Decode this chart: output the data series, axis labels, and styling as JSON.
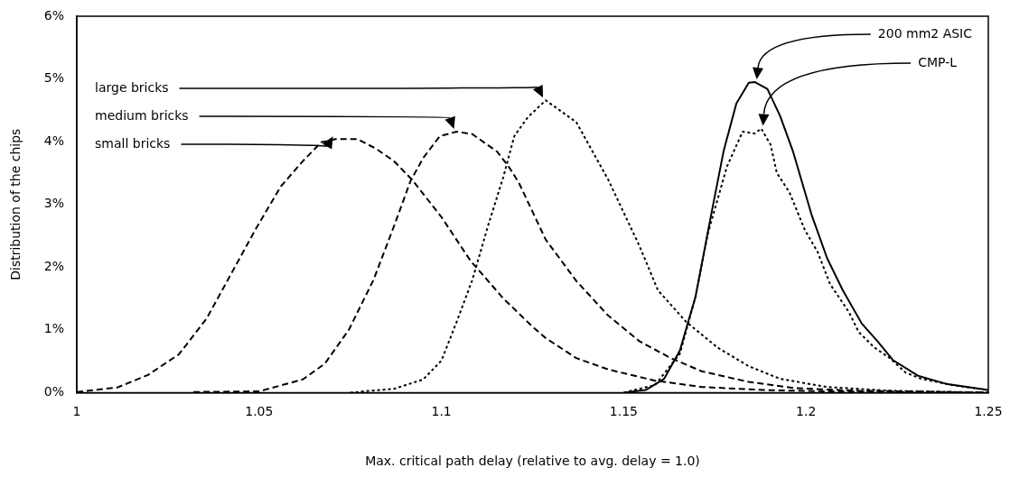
{
  "chart_data": {
    "type": "line",
    "xlabel": "Max. critical path delay (relative to avg. delay = 1.0)",
    "ylabel": "Distribution of the chips",
    "xlim": [
      1,
      1.25
    ],
    "xticks": [
      1,
      1.05,
      1.1,
      1.15,
      1.2,
      1.25
    ],
    "ylim": [
      0,
      6
    ],
    "yticks": [
      {
        "value": 0,
        "label": "0%"
      },
      {
        "value": 1,
        "label": "1%"
      },
      {
        "value": 2,
        "label": "2%"
      },
      {
        "value": 3,
        "label": "3%"
      },
      {
        "value": 4,
        "label": "4%"
      },
      {
        "value": 5,
        "label": "5%"
      },
      {
        "value": 6,
        "label": "6%"
      }
    ],
    "grid": false,
    "legend": false,
    "annotations": [
      "large bricks",
      "medium bricks",
      "small bricks",
      "200 mm2 ASIC",
      "CMP-L"
    ],
    "series": [
      {
        "color": "#000000",
        "line_style": "dotted",
        "x": [
          1.075,
          1.087,
          1.095,
          1.1,
          1.104,
          1.1085,
          1.113,
          1.117,
          1.12,
          1.1237,
          1.1286,
          1.137,
          1.1457,
          1.1543,
          1.1594,
          1.1671,
          1.1757,
          1.1843,
          1.1929,
          1.2057,
          1.2229,
          1.25
        ],
        "values": [
          0,
          0.06,
          0.21,
          0.51,
          1.1,
          1.8,
          2.7,
          3.44,
          4.09,
          4.39,
          4.66,
          4.31,
          3.4,
          2.34,
          1.63,
          1.13,
          0.72,
          0.42,
          0.22,
          0.09,
          0.03,
          0
        ]
      },
      {
        "color": "#000000",
        "line_style": "dashed",
        "x": [
          1.032,
          1.05,
          1.062,
          1.068,
          1.0746,
          1.0814,
          1.0873,
          1.0915,
          1.095,
          1.0996,
          1.1042,
          1.1085,
          1.1153,
          1.1186,
          1.1212,
          1.1286,
          1.137,
          1.1457,
          1.1543,
          1.1629,
          1.1714,
          1.1843,
          1.1972,
          1.2143,
          1.25
        ],
        "values": [
          0.01,
          0.02,
          0.21,
          0.46,
          1.0,
          1.8,
          2.7,
          3.37,
          3.74,
          4.09,
          4.16,
          4.12,
          3.84,
          3.59,
          3.35,
          2.44,
          1.78,
          1.23,
          0.82,
          0.55,
          0.34,
          0.17,
          0.07,
          0.03,
          0
        ]
      },
      {
        "color": "#000000",
        "line_style": "dashed",
        "x": [
          1,
          1.011,
          1.0195,
          1.028,
          1.0356,
          1.0424,
          1.049,
          1.056,
          1.062,
          1.067,
          1.071,
          1.077,
          1.082,
          1.087,
          1.092,
          1.1,
          1.108,
          1.117,
          1.125,
          1.1286,
          1.137,
          1.1457,
          1.1586,
          1.1714,
          1.1886,
          1.206,
          1.25
        ],
        "values": [
          0.01,
          0.08,
          0.28,
          0.61,
          1.18,
          1.9,
          2.6,
          3.29,
          3.69,
          3.99,
          4.04,
          4.04,
          3.89,
          3.69,
          3.39,
          2.8,
          2.1,
          1.5,
          1.05,
          0.87,
          0.55,
          0.37,
          0.19,
          0.09,
          0.04,
          0.02,
          0
        ]
      },
      {
        "color": "#000000",
        "line_style": "solid",
        "x": [
          1.15,
          1.156,
          1.1611,
          1.1654,
          1.1697,
          1.174,
          1.1774,
          1.1809,
          1.1843,
          1.186,
          1.1894,
          1.1929,
          1.1964,
          1.2015,
          1.2058,
          1.2101,
          1.2153,
          1.2196,
          1.2238,
          1.2307,
          1.2384,
          1.25
        ],
        "values": [
          0,
          0.04,
          0.22,
          0.67,
          1.53,
          2.84,
          3.85,
          4.61,
          4.94,
          4.95,
          4.84,
          4.41,
          3.85,
          2.84,
          2.14,
          1.63,
          1.1,
          0.82,
          0.52,
          0.27,
          0.14,
          0.04
        ]
      },
      {
        "color": "#000000",
        "line_style": "dotted",
        "x": [
          1.15,
          1.1586,
          1.1654,
          1.1697,
          1.1731,
          1.1783,
          1.1826,
          1.186,
          1.1877,
          1.1903,
          1.192,
          1.1954,
          1.1997,
          1.2032,
          1.2066,
          1.2118,
          1.2144,
          1.2187,
          1.223,
          1.2273,
          1.2316,
          1.2401,
          1.25
        ],
        "values": [
          0,
          0.12,
          0.62,
          1.53,
          2.54,
          3.6,
          4.16,
          4.13,
          4.21,
          3.95,
          3.5,
          3.2,
          2.59,
          2.24,
          1.73,
          1.28,
          0.97,
          0.72,
          0.55,
          0.32,
          0.22,
          0.12,
          0.04
        ]
      }
    ]
  }
}
